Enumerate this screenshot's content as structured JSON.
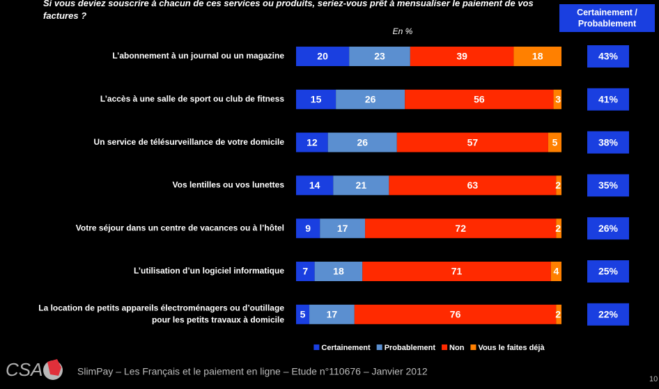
{
  "chart_data": {
    "type": "stacked-bar-horizontal",
    "title": "Si vous deviez souscrire à chacun de ces services ou produits, seriez-vous prêt à mensualiser le paiement de vos factures ?",
    "subtitle": "En %",
    "categories": [
      "L’abonnement à un journal ou un magazine",
      "L’accès à une salle de sport ou club de fitness",
      "Un service de télésurveillance de votre domicile",
      "Vos lentilles ou vos lunettes",
      "Votre séjour dans un centre de vacances ou à l’hôtel",
      "L’utilisation d’un logiciel informatique",
      "La location de petits appareils électroménagers ou d’outillage\npour les petits travaux à domicile"
    ],
    "series": [
      {
        "name": "Certainement",
        "color": "#1a3fe0",
        "values": [
          20,
          15,
          12,
          14,
          9,
          7,
          5
        ]
      },
      {
        "name": "Probablement",
        "color": "#5b8fd0",
        "values": [
          23,
          26,
          26,
          21,
          17,
          18,
          17
        ]
      },
      {
        "name": "Non",
        "color": "#ff2a00",
        "values": [
          39,
          56,
          57,
          63,
          72,
          71,
          76
        ]
      },
      {
        "name": "Vous le faites déjà",
        "color": "#ff8000",
        "values": [
          18,
          3,
          5,
          2,
          2,
          4,
          2
        ]
      }
    ],
    "totals": {
      "title": "Certainement / Probablement",
      "color": "#1a3fe0",
      "values": [
        43,
        41,
        38,
        35,
        26,
        25,
        22
      ],
      "value_labels": [
        "43%",
        "41%",
        "38%",
        "35%",
        "26%",
        "25%",
        "22%"
      ]
    },
    "footer": "SlimPay – Les Français et le paiement en ligne – Etude n°110676 – Janvier 2012",
    "logo": "CSA",
    "page_number": "10"
  }
}
